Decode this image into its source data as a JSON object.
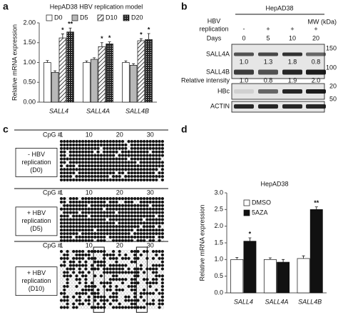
{
  "panels": [
    "a",
    "b",
    "c",
    "d"
  ],
  "chart_data": [
    {
      "type": "bar",
      "title": "HepAD38 HBV replication model",
      "y_label": "Relative mRNA expression",
      "categories": [
        "SALL4",
        "SALL4A",
        "SALL4B"
      ],
      "series": [
        {
          "name": "D0",
          "color": "#ffffff",
          "pattern": "none",
          "values": [
            1.0,
            1.0,
            1.0
          ],
          "errors": [
            0.05,
            0.04,
            0.04
          ]
        },
        {
          "name": "D5",
          "color": "#b8b8b8",
          "pattern": "none",
          "values": [
            0.75,
            1.08,
            0.93
          ],
          "errors": [
            0.04,
            0.04,
            0.04
          ]
        },
        {
          "name": "D10",
          "color": "#ffffff",
          "pattern": "hatch",
          "values": [
            1.62,
            1.4,
            1.55
          ],
          "errors": [
            0.1,
            0.1,
            0.05
          ],
          "annotations": [
            "*",
            "*",
            "*"
          ]
        },
        {
          "name": "D20",
          "color": "#222222",
          "pattern": "dots",
          "values": [
            1.77,
            1.47,
            1.58
          ],
          "errors": [
            0.1,
            0.05,
            0.15
          ],
          "annotations": [
            "**",
            "*",
            "*"
          ]
        }
      ],
      "ylim": [
        0,
        2
      ],
      "yticks": [
        {
          "value": 0,
          "label": "0.00"
        },
        {
          "value": 0.5,
          "label": "0.50"
        },
        {
          "value": 1,
          "label": "1.00"
        },
        {
          "value": 1.5,
          "label": "1.50"
        },
        {
          "value": 2,
          "label": "2.00"
        }
      ],
      "legend": "top"
    },
    {
      "type": "bar",
      "title": "HepAD38",
      "y_label": "Relative mRNA expression",
      "categories": [
        "SALL4",
        "SALL4A",
        "SALL4B"
      ],
      "series": [
        {
          "name": "DMSO",
          "color": "#ffffff",
          "pattern": "none",
          "values": [
            1.0,
            1.0,
            1.03
          ],
          "errors": [
            0.06,
            0.05,
            0.08
          ]
        },
        {
          "name": "5AZA",
          "color": "#111111",
          "pattern": "none",
          "values": [
            1.55,
            0.92,
            2.5
          ],
          "errors": [
            0.1,
            0.08,
            0.08
          ],
          "annotations": [
            "*",
            null,
            "**"
          ]
        }
      ],
      "ylim": [
        0,
        3
      ],
      "yticks": [
        {
          "value": 0,
          "label": "0.0"
        },
        0.5,
        {
          "value": 1,
          "label": "1.0"
        },
        1.5,
        {
          "value": 2,
          "label": "2.0"
        },
        2.5,
        {
          "value": 3,
          "label": "3.0"
        }
      ],
      "legend": "top-left"
    }
  ],
  "blot": {
    "cell_line": "HepAD38",
    "row_labels": [
      "HBV",
      "replication",
      "Days"
    ],
    "replication": [
      "-",
      "+",
      "+",
      "+"
    ],
    "days": [
      "0",
      "5",
      "10",
      "20"
    ],
    "mw_title": "MW (kDa)",
    "bands": [
      "SALL4A",
      "SALL4B",
      "HBc",
      "ACTIN"
    ],
    "mw": [
      "150",
      "100",
      "20",
      "50"
    ],
    "relative_label": "Relative intensity",
    "intensity_sall4a": [
      "1.0",
      "1.3",
      "1.8",
      "0.8"
    ],
    "intensity_sall4b": [
      "1.0",
      "0.8",
      "1.9",
      "2.0"
    ]
  },
  "methylation": {
    "cpg_label": "CpG #",
    "cpg_ticks": [
      "1",
      "10",
      "20",
      "30"
    ],
    "groups": [
      {
        "sign": "- HBV",
        "line": "replication",
        "day": "(D0)"
      },
      {
        "sign": "+ HBV",
        "line": "replication",
        "day": "(D5)"
      },
      {
        "sign": "+ HBV",
        "line": "replication",
        "day": "(D10)"
      }
    ]
  }
}
